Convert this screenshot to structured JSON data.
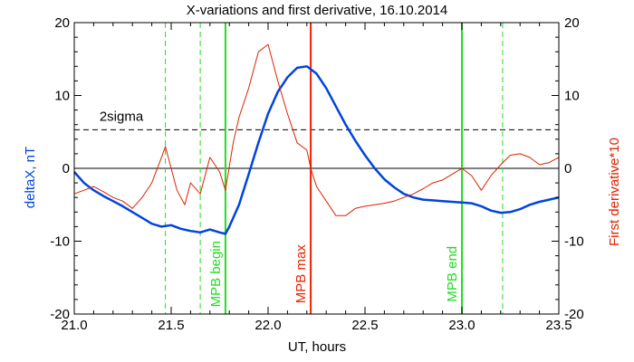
{
  "chart_data": {
    "type": "line",
    "title": "X-variations and first derivative, 16.10.2014",
    "xlabel": "UT, hours",
    "ylabel_left": "deltaX, nT",
    "ylabel_right": "First derivative*10",
    "xlim": [
      21.0,
      23.5
    ],
    "ylim_left": [
      -20,
      20
    ],
    "ylim_right": [
      -20,
      20
    ],
    "x_ticks": [
      21.0,
      21.5,
      22.0,
      22.5,
      23.0,
      23.5
    ],
    "x_tick_labels": [
      "21.0",
      "21.5",
      "22.0",
      "22.5",
      "23.0",
      "23.5"
    ],
    "y_ticks": [
      -20,
      -10,
      0,
      10,
      20
    ],
    "y_tick_labels": [
      "-20",
      "-10",
      "0",
      "10",
      "20"
    ],
    "colors": {
      "deltaX": "#0044dd",
      "derivative": "#dd2200",
      "mpb_begin_end": "#22dd22",
      "mpb_max": "#ee2200",
      "sigma": "#000000",
      "zero": "#000000"
    },
    "sigma_level": 5.3,
    "sigma_label": "2sigma",
    "series": [
      {
        "key": "deltaX",
        "axis": "left",
        "x": [
          21.0,
          21.05,
          21.1,
          21.15,
          21.2,
          21.25,
          21.3,
          21.35,
          21.4,
          21.45,
          21.5,
          21.55,
          21.6,
          21.65,
          21.7,
          21.75,
          21.78,
          21.8,
          21.85,
          21.9,
          21.95,
          22.0,
          22.05,
          22.1,
          22.15,
          22.2,
          22.25,
          22.3,
          22.35,
          22.4,
          22.45,
          22.5,
          22.55,
          22.6,
          22.65,
          22.7,
          22.75,
          22.8,
          22.85,
          22.9,
          22.95,
          23.0,
          23.05,
          23.1,
          23.15,
          23.2,
          23.25,
          23.3,
          23.35,
          23.4,
          23.45,
          23.5
        ],
        "y": [
          -0.5,
          -2.0,
          -3.0,
          -3.8,
          -4.5,
          -5.2,
          -6.0,
          -6.8,
          -7.6,
          -8.0,
          -7.8,
          -8.3,
          -8.6,
          -8.8,
          -8.4,
          -8.8,
          -9.0,
          -8.0,
          -5.0,
          -0.8,
          3.5,
          7.5,
          10.5,
          12.5,
          13.8,
          14.0,
          13.0,
          11.0,
          8.5,
          6.0,
          3.8,
          1.8,
          0.0,
          -1.5,
          -2.6,
          -3.5,
          -4.0,
          -4.3,
          -4.4,
          -4.5,
          -4.6,
          -4.7,
          -4.8,
          -5.2,
          -5.8,
          -6.1,
          -6.0,
          -5.6,
          -5.0,
          -4.6,
          -4.3,
          -4.0
        ]
      },
      {
        "key": "derivative",
        "axis": "right",
        "x": [
          21.0,
          21.05,
          21.1,
          21.15,
          21.2,
          21.25,
          21.3,
          21.35,
          21.4,
          21.45,
          21.47,
          21.5,
          21.53,
          21.57,
          21.6,
          21.65,
          21.7,
          21.75,
          21.78,
          21.82,
          21.85,
          21.9,
          21.95,
          22.0,
          22.05,
          22.1,
          22.15,
          22.2,
          22.22,
          22.25,
          22.3,
          22.35,
          22.4,
          22.45,
          22.5,
          22.55,
          22.6,
          22.65,
          22.7,
          22.75,
          22.8,
          22.85,
          22.9,
          22.95,
          23.0,
          23.05,
          23.1,
          23.15,
          23.2,
          23.25,
          23.3,
          23.35,
          23.4,
          23.45,
          23.5
        ],
        "y": [
          -3.5,
          -3.0,
          -2.5,
          -3.2,
          -4.0,
          -4.5,
          -5.5,
          -4.0,
          -2.0,
          1.5,
          3.0,
          0.0,
          -3.0,
          -5.0,
          -2.0,
          -3.5,
          1.5,
          -0.5,
          -3.0,
          3.5,
          7.0,
          11.0,
          16.0,
          17.0,
          12.0,
          7.5,
          3.5,
          2.5,
          0.0,
          -2.5,
          -4.5,
          -6.5,
          -6.5,
          -5.5,
          -5.2,
          -5.0,
          -4.8,
          -4.5,
          -4.0,
          -3.5,
          -2.8,
          -2.0,
          -1.6,
          -0.8,
          0.0,
          -1.0,
          -3.0,
          -1.0,
          0.5,
          1.8,
          2.0,
          1.5,
          0.5,
          0.8,
          1.5
        ]
      }
    ],
    "vlines": [
      {
        "x": 21.47,
        "color": "#22dd22",
        "style": "dashed",
        "label": ""
      },
      {
        "x": 21.65,
        "color": "#22dd22",
        "style": "dashed",
        "label": ""
      },
      {
        "x": 21.78,
        "color": "#22dd22",
        "style": "solid",
        "label": "MPB begin"
      },
      {
        "x": 22.22,
        "color": "#ee2200",
        "style": "solid",
        "label": "MPB max"
      },
      {
        "x": 23.0,
        "color": "#22dd22",
        "style": "solid",
        "label": "MPB end"
      },
      {
        "x": 23.21,
        "color": "#22dd22",
        "style": "dashed",
        "label": ""
      }
    ],
    "grid": false,
    "legend": "none"
  }
}
